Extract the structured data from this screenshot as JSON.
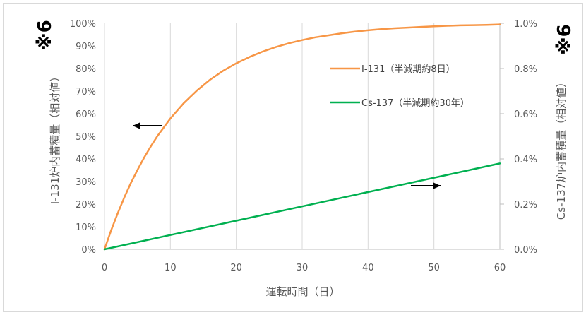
{
  "chart_data": {
    "type": "line",
    "xlabel": "運転時間（日）",
    "ylabel_left": "I-131炉内蓄積量（相対値）",
    "ylabel_right": "Cs-137炉内蓄積量（相対値）",
    "note_left": "※6",
    "note_right": "※6",
    "x_ticks": [
      "0",
      "10",
      "20",
      "30",
      "40",
      "50",
      "60"
    ],
    "y_left_ticks": [
      "0%",
      "10%",
      "20%",
      "30%",
      "40%",
      "50%",
      "60%",
      "70%",
      "80%",
      "90%",
      "100%"
    ],
    "y_right_ticks": [
      "0.0%",
      "0.2%",
      "0.4%",
      "0.6%",
      "0.8%",
      "1.0%"
    ],
    "xlim": [
      0,
      60
    ],
    "ylim_left": [
      0,
      100
    ],
    "ylim_right": [
      0,
      1.0
    ],
    "grid": "vertical",
    "legend_position": "top-right",
    "series": [
      {
        "name": "I-131（半減期約8日）",
        "axis": "left",
        "color": "#F79646",
        "x": [
          0,
          1,
          2,
          3,
          4,
          5,
          6,
          7,
          8,
          10,
          12,
          14,
          16,
          18,
          20,
          22,
          24,
          26,
          28,
          30,
          32,
          34,
          36,
          38,
          40,
          42,
          44,
          46,
          48,
          50,
          52,
          54,
          56,
          58,
          60
        ],
        "y": [
          0,
          8.3,
          15.9,
          22.9,
          29.3,
          35.1,
          40.5,
          45.4,
          50.0,
          57.9,
          64.6,
          70.2,
          75.0,
          79.0,
          82.3,
          85.1,
          87.5,
          89.5,
          91.2,
          92.6,
          93.8,
          94.7,
          95.6,
          96.3,
          96.9,
          97.4,
          97.8,
          98.1,
          98.4,
          98.7,
          98.9,
          99.1,
          99.2,
          99.3,
          99.5
        ]
      },
      {
        "name": "Cs-137（半減期約30年）",
        "axis": "right",
        "color": "#00B050",
        "x": [
          0,
          60
        ],
        "y": [
          0,
          0.38
        ]
      }
    ],
    "annotations": [
      {
        "type": "arrow",
        "direction": "left",
        "target_axis": "left"
      },
      {
        "type": "arrow",
        "direction": "right",
        "target_axis": "right"
      }
    ]
  }
}
